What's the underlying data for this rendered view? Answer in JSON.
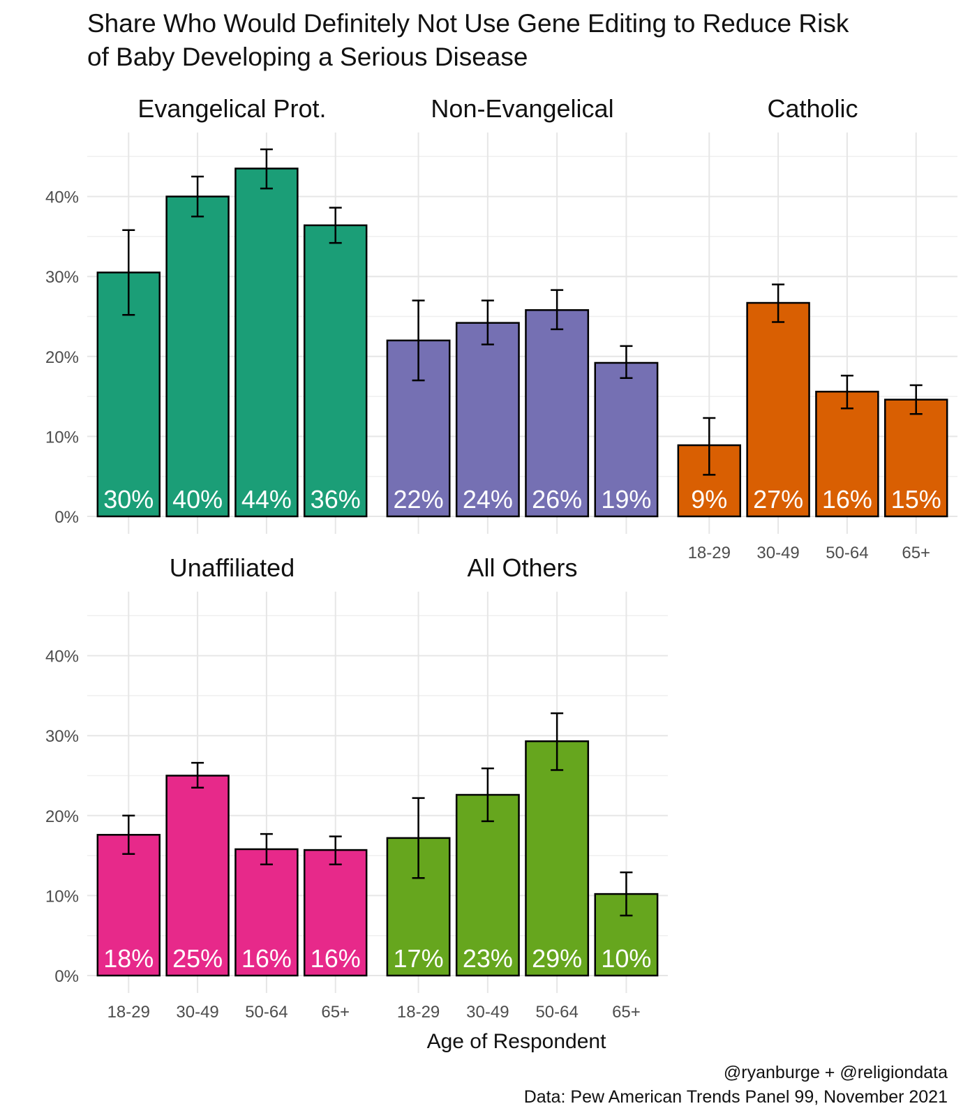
{
  "chart_data": {
    "type": "bar",
    "title_lines": [
      "Share Who Would Definitely Not Use Gene Editing to Reduce Risk",
      "of Baby Developing a Serious Disease"
    ],
    "xlabel": "Age of Respondent",
    "ylabel": "",
    "categories": [
      "18-29",
      "30-49",
      "50-64",
      "65+"
    ],
    "ylim": [
      0,
      48
    ],
    "yticks": [
      0,
      10,
      20,
      30,
      40
    ],
    "ytick_labels": [
      "0%",
      "10%",
      "20%",
      "30%",
      "40%"
    ],
    "grid": true,
    "legend": "none",
    "panels": [
      {
        "name": "Evangelical Prot.",
        "color": "#1b9e77",
        "values": [
          30.5,
          40.0,
          43.5,
          36.4
        ],
        "lower": [
          25.2,
          37.5,
          41.0,
          34.2
        ],
        "upper": [
          35.8,
          42.5,
          45.9,
          38.6
        ],
        "labels": [
          "30%",
          "40%",
          "44%",
          "36%"
        ]
      },
      {
        "name": "Non-Evangelical",
        "color": "#7570b3",
        "values": [
          22.0,
          24.2,
          25.8,
          19.2
        ],
        "lower": [
          17.0,
          21.5,
          23.4,
          17.3
        ],
        "upper": [
          27.0,
          27.0,
          28.3,
          21.3
        ],
        "labels": [
          "22%",
          "24%",
          "26%",
          "19%"
        ]
      },
      {
        "name": "Catholic",
        "color": "#d95f02",
        "values": [
          8.9,
          26.7,
          15.6,
          14.6
        ],
        "lower": [
          5.2,
          24.3,
          13.5,
          12.8
        ],
        "upper": [
          12.3,
          29.0,
          17.6,
          16.4
        ],
        "labels": [
          "9%",
          "27%",
          "16%",
          "15%"
        ]
      },
      {
        "name": "Unaffiliated",
        "color": "#e7298a",
        "values": [
          17.6,
          25.0,
          15.8,
          15.7
        ],
        "lower": [
          15.2,
          23.5,
          13.9,
          13.9
        ],
        "upper": [
          20.0,
          26.6,
          17.7,
          17.4
        ],
        "labels": [
          "18%",
          "25%",
          "16%",
          "16%"
        ]
      },
      {
        "name": "All Others",
        "color": "#66a61e",
        "values": [
          17.2,
          22.6,
          29.3,
          10.2
        ],
        "lower": [
          12.2,
          19.3,
          25.7,
          7.5
        ],
        "upper": [
          22.2,
          25.9,
          32.8,
          12.9
        ],
        "labels": [
          "17%",
          "23%",
          "29%",
          "10%"
        ]
      }
    ],
    "caption_lines": [
      "@ryanburge + @religiondata",
      "Data: Pew American Trends Panel 99, November 2021"
    ]
  }
}
